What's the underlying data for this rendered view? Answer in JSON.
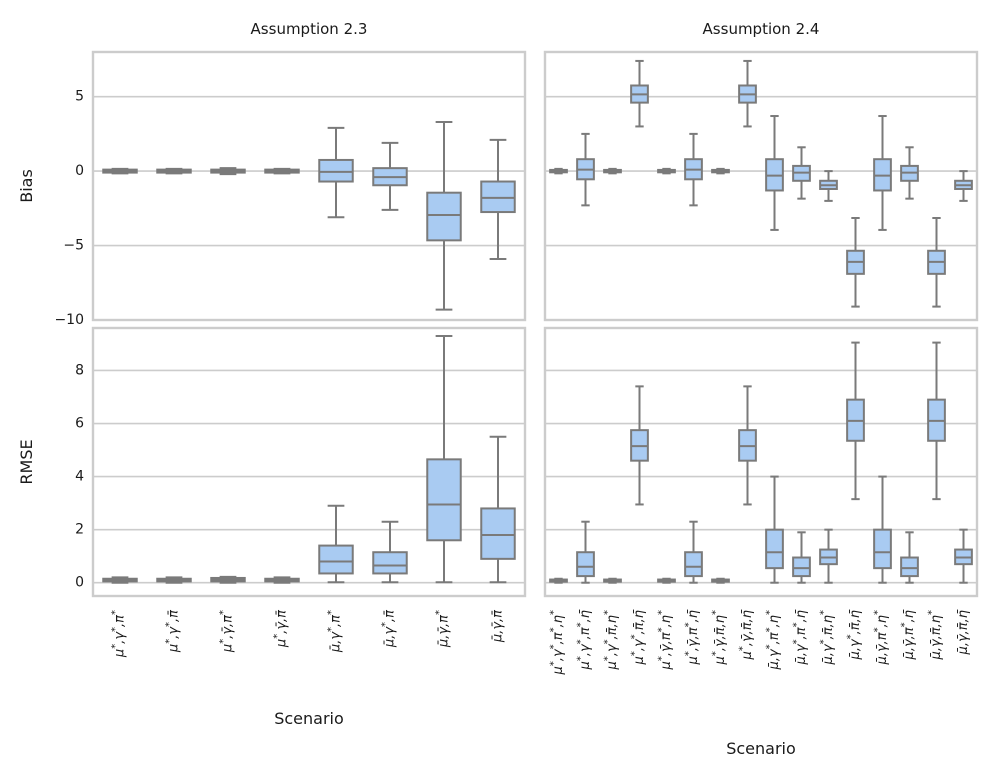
{
  "figure": {
    "xlabel": "Scenario",
    "colors": {
      "box": "#a9cbf2",
      "edge": "#7a7a7a",
      "grid": "#cccccc",
      "frame": "#cccccc"
    }
  },
  "chart_data": [
    {
      "type": "boxplot",
      "title": "Assumption 2.3",
      "ylabel": "Bias",
      "ylim": [
        -10,
        8
      ],
      "yticks": [
        -10,
        -5,
        0,
        5
      ],
      "xlabel": "Scenario",
      "categories": [
        "μ*,γ*,π*",
        "μ*,γ*,π̄",
        "μ*,γ̄,π*",
        "μ*,γ̄,π̄",
        "μ̄,γ*,π*",
        "μ̄,γ*,π̄",
        "μ̄,γ̄,π*",
        "μ̄,γ̄,π̄"
      ],
      "boxes": [
        {
          "wl": -0.15,
          "q1": -0.1,
          "med": 0.0,
          "q3": 0.1,
          "wh": 0.15
        },
        {
          "wl": -0.15,
          "q1": -0.1,
          "med": 0.0,
          "q3": 0.1,
          "wh": 0.15
        },
        {
          "wl": -0.2,
          "q1": -0.1,
          "med": 0.0,
          "q3": 0.1,
          "wh": 0.2
        },
        {
          "wl": -0.15,
          "q1": -0.1,
          "med": 0.0,
          "q3": 0.1,
          "wh": 0.15
        },
        {
          "wl": -3.1,
          "q1": -0.7,
          "med": -0.05,
          "q3": 0.75,
          "wh": 2.9
        },
        {
          "wl": -2.6,
          "q1": -0.95,
          "med": -0.4,
          "q3": 0.2,
          "wh": 1.9
        },
        {
          "wl": -9.3,
          "q1": -4.65,
          "med": -2.95,
          "q3": -1.45,
          "wh": 3.3
        },
        {
          "wl": -5.9,
          "q1": -2.75,
          "med": -1.8,
          "q3": -0.7,
          "wh": 2.1
        }
      ]
    },
    {
      "type": "boxplot",
      "title": "Assumption 2.4",
      "ylabel": "Bias",
      "ylim": [
        -10,
        8
      ],
      "yticks": [
        -10,
        -5,
        0,
        5
      ],
      "xlabel": "Scenario",
      "categories": [
        "μ*,γ*,π*,η*",
        "μ*,γ*,π*,η̄",
        "μ*,γ*,π̄,η*",
        "μ*,γ*,π̄,η̄",
        "μ*,γ̄,π*,η*",
        "μ*,γ̄,π*,η̄",
        "μ*,γ̄,π̄,η*",
        "μ*,γ̄,π̄,η̄",
        "μ̄,γ*,π*,η*",
        "μ̄,γ*,π*,η̄",
        "μ̄,γ*,π̄,η*",
        "μ̄,γ*,π̄,η̄",
        "μ̄,γ̄,π*,η*",
        "μ̄,γ̄,π*,η̄",
        "μ̄,γ̄,π̄,η*",
        "μ̄,γ̄,π̄,η̄"
      ],
      "boxes": [
        {
          "wl": -0.15,
          "q1": -0.08,
          "med": 0.0,
          "q3": 0.08,
          "wh": 0.15
        },
        {
          "wl": -2.3,
          "q1": -0.55,
          "med": 0.1,
          "q3": 0.8,
          "wh": 2.5
        },
        {
          "wl": -0.15,
          "q1": -0.08,
          "med": 0.0,
          "q3": 0.08,
          "wh": 0.15
        },
        {
          "wl": 3.0,
          "q1": 4.6,
          "med": 5.15,
          "q3": 5.75,
          "wh": 7.4
        },
        {
          "wl": -0.15,
          "q1": -0.08,
          "med": 0.0,
          "q3": 0.08,
          "wh": 0.15
        },
        {
          "wl": -2.3,
          "q1": -0.55,
          "med": 0.1,
          "q3": 0.8,
          "wh": 2.5
        },
        {
          "wl": -0.15,
          "q1": -0.08,
          "med": 0.0,
          "q3": 0.08,
          "wh": 0.15
        },
        {
          "wl": 3.0,
          "q1": 4.6,
          "med": 5.15,
          "q3": 5.75,
          "wh": 7.4
        },
        {
          "wl": -3.95,
          "q1": -1.3,
          "med": -0.3,
          "q3": 0.8,
          "wh": 3.7
        },
        {
          "wl": -1.85,
          "q1": -0.65,
          "med": -0.1,
          "q3": 0.35,
          "wh": 1.6
        },
        {
          "wl": -2.0,
          "q1": -1.2,
          "med": -0.95,
          "q3": -0.65,
          "wh": 0.0
        },
        {
          "wl": -9.1,
          "q1": -6.9,
          "med": -6.1,
          "q3": -5.35,
          "wh": -3.15
        },
        {
          "wl": -3.95,
          "q1": -1.3,
          "med": -0.3,
          "q3": 0.8,
          "wh": 3.7
        },
        {
          "wl": -1.85,
          "q1": -0.65,
          "med": -0.1,
          "q3": 0.35,
          "wh": 1.6
        },
        {
          "wl": -9.1,
          "q1": -6.9,
          "med": -6.1,
          "q3": -5.35,
          "wh": -3.15
        },
        {
          "wl": -2.0,
          "q1": -1.2,
          "med": -0.95,
          "q3": -0.65,
          "wh": 0.0
        }
      ]
    },
    {
      "type": "boxplot",
      "title": "",
      "ylabel": "RMSE",
      "ylim": [
        -0.5,
        9.6
      ],
      "yticks": [
        0,
        2,
        4,
        6,
        8
      ],
      "xlabel": "Scenario",
      "categories": [
        "μ*,γ*,π*",
        "μ*,γ*,π̄",
        "μ*,γ̄,π*",
        "μ*,γ̄,π̄",
        "μ̄,γ*,π*",
        "μ̄,γ*,π̄",
        "μ̄,γ̄,π*",
        "μ̄,γ̄,π̄"
      ],
      "boxes": [
        {
          "wl": 0.0,
          "q1": 0.05,
          "med": 0.1,
          "q3": 0.15,
          "wh": 0.2
        },
        {
          "wl": 0.0,
          "q1": 0.05,
          "med": 0.1,
          "q3": 0.15,
          "wh": 0.2
        },
        {
          "wl": 0.0,
          "q1": 0.05,
          "med": 0.12,
          "q3": 0.18,
          "wh": 0.22
        },
        {
          "wl": 0.0,
          "q1": 0.05,
          "med": 0.1,
          "q3": 0.15,
          "wh": 0.2
        },
        {
          "wl": 0.02,
          "q1": 0.35,
          "med": 0.8,
          "q3": 1.4,
          "wh": 2.9
        },
        {
          "wl": 0.02,
          "q1": 0.35,
          "med": 0.65,
          "q3": 1.15,
          "wh": 2.3
        },
        {
          "wl": 0.02,
          "q1": 1.6,
          "med": 2.95,
          "q3": 4.65,
          "wh": 9.3
        },
        {
          "wl": 0.02,
          "q1": 0.9,
          "med": 1.8,
          "q3": 2.8,
          "wh": 5.5
        }
      ]
    },
    {
      "type": "boxplot",
      "title": "",
      "ylabel": "RMSE",
      "ylim": [
        -0.5,
        9.6
      ],
      "yticks": [
        0,
        2,
        4,
        6,
        8
      ],
      "xlabel": "Scenario",
      "categories": [
        "μ*,γ*,π*,η*",
        "μ*,γ*,π*,η̄",
        "μ*,γ*,π̄,η*",
        "μ*,γ*,π̄,η̄",
        "μ*,γ̄,π*,η*",
        "μ*,γ̄,π*,η̄",
        "μ*,γ̄,π̄,η*",
        "μ*,γ̄,π̄,η̄",
        "μ̄,γ*,π*,η*",
        "μ̄,γ*,π*,η̄",
        "μ̄,γ*,π̄,η*",
        "μ̄,γ*,π̄,η̄",
        "μ̄,γ̄,π*,η*",
        "μ̄,γ̄,π*,η̄",
        "μ̄,γ̄,π̄,η*",
        "μ̄,γ̄,π̄,η̄"
      ],
      "boxes": [
        {
          "wl": 0.0,
          "q1": 0.04,
          "med": 0.08,
          "q3": 0.12,
          "wh": 0.15
        },
        {
          "wl": 0.0,
          "q1": 0.25,
          "med": 0.6,
          "q3": 1.15,
          "wh": 2.3
        },
        {
          "wl": 0.0,
          "q1": 0.04,
          "med": 0.08,
          "q3": 0.12,
          "wh": 0.15
        },
        {
          "wl": 2.95,
          "q1": 4.6,
          "med": 5.15,
          "q3": 5.75,
          "wh": 7.4
        },
        {
          "wl": 0.0,
          "q1": 0.04,
          "med": 0.08,
          "q3": 0.12,
          "wh": 0.15
        },
        {
          "wl": 0.0,
          "q1": 0.25,
          "med": 0.6,
          "q3": 1.15,
          "wh": 2.3
        },
        {
          "wl": 0.0,
          "q1": 0.04,
          "med": 0.08,
          "q3": 0.12,
          "wh": 0.15
        },
        {
          "wl": 2.95,
          "q1": 4.6,
          "med": 5.15,
          "q3": 5.75,
          "wh": 7.4
        },
        {
          "wl": 0.0,
          "q1": 0.55,
          "med": 1.15,
          "q3": 2.0,
          "wh": 4.0
        },
        {
          "wl": 0.0,
          "q1": 0.25,
          "med": 0.55,
          "q3": 0.95,
          "wh": 1.9
        },
        {
          "wl": 0.0,
          "q1": 0.7,
          "med": 0.95,
          "q3": 1.25,
          "wh": 2.0
        },
        {
          "wl": 3.15,
          "q1": 5.35,
          "med": 6.1,
          "q3": 6.9,
          "wh": 9.05
        },
        {
          "wl": 0.0,
          "q1": 0.55,
          "med": 1.15,
          "q3": 2.0,
          "wh": 4.0
        },
        {
          "wl": 0.0,
          "q1": 0.25,
          "med": 0.55,
          "q3": 0.95,
          "wh": 1.9
        },
        {
          "wl": 3.15,
          "q1": 5.35,
          "med": 6.1,
          "q3": 6.9,
          "wh": 9.05
        },
        {
          "wl": 0.0,
          "q1": 0.7,
          "med": 0.95,
          "q3": 1.25,
          "wh": 2.0
        }
      ]
    }
  ]
}
